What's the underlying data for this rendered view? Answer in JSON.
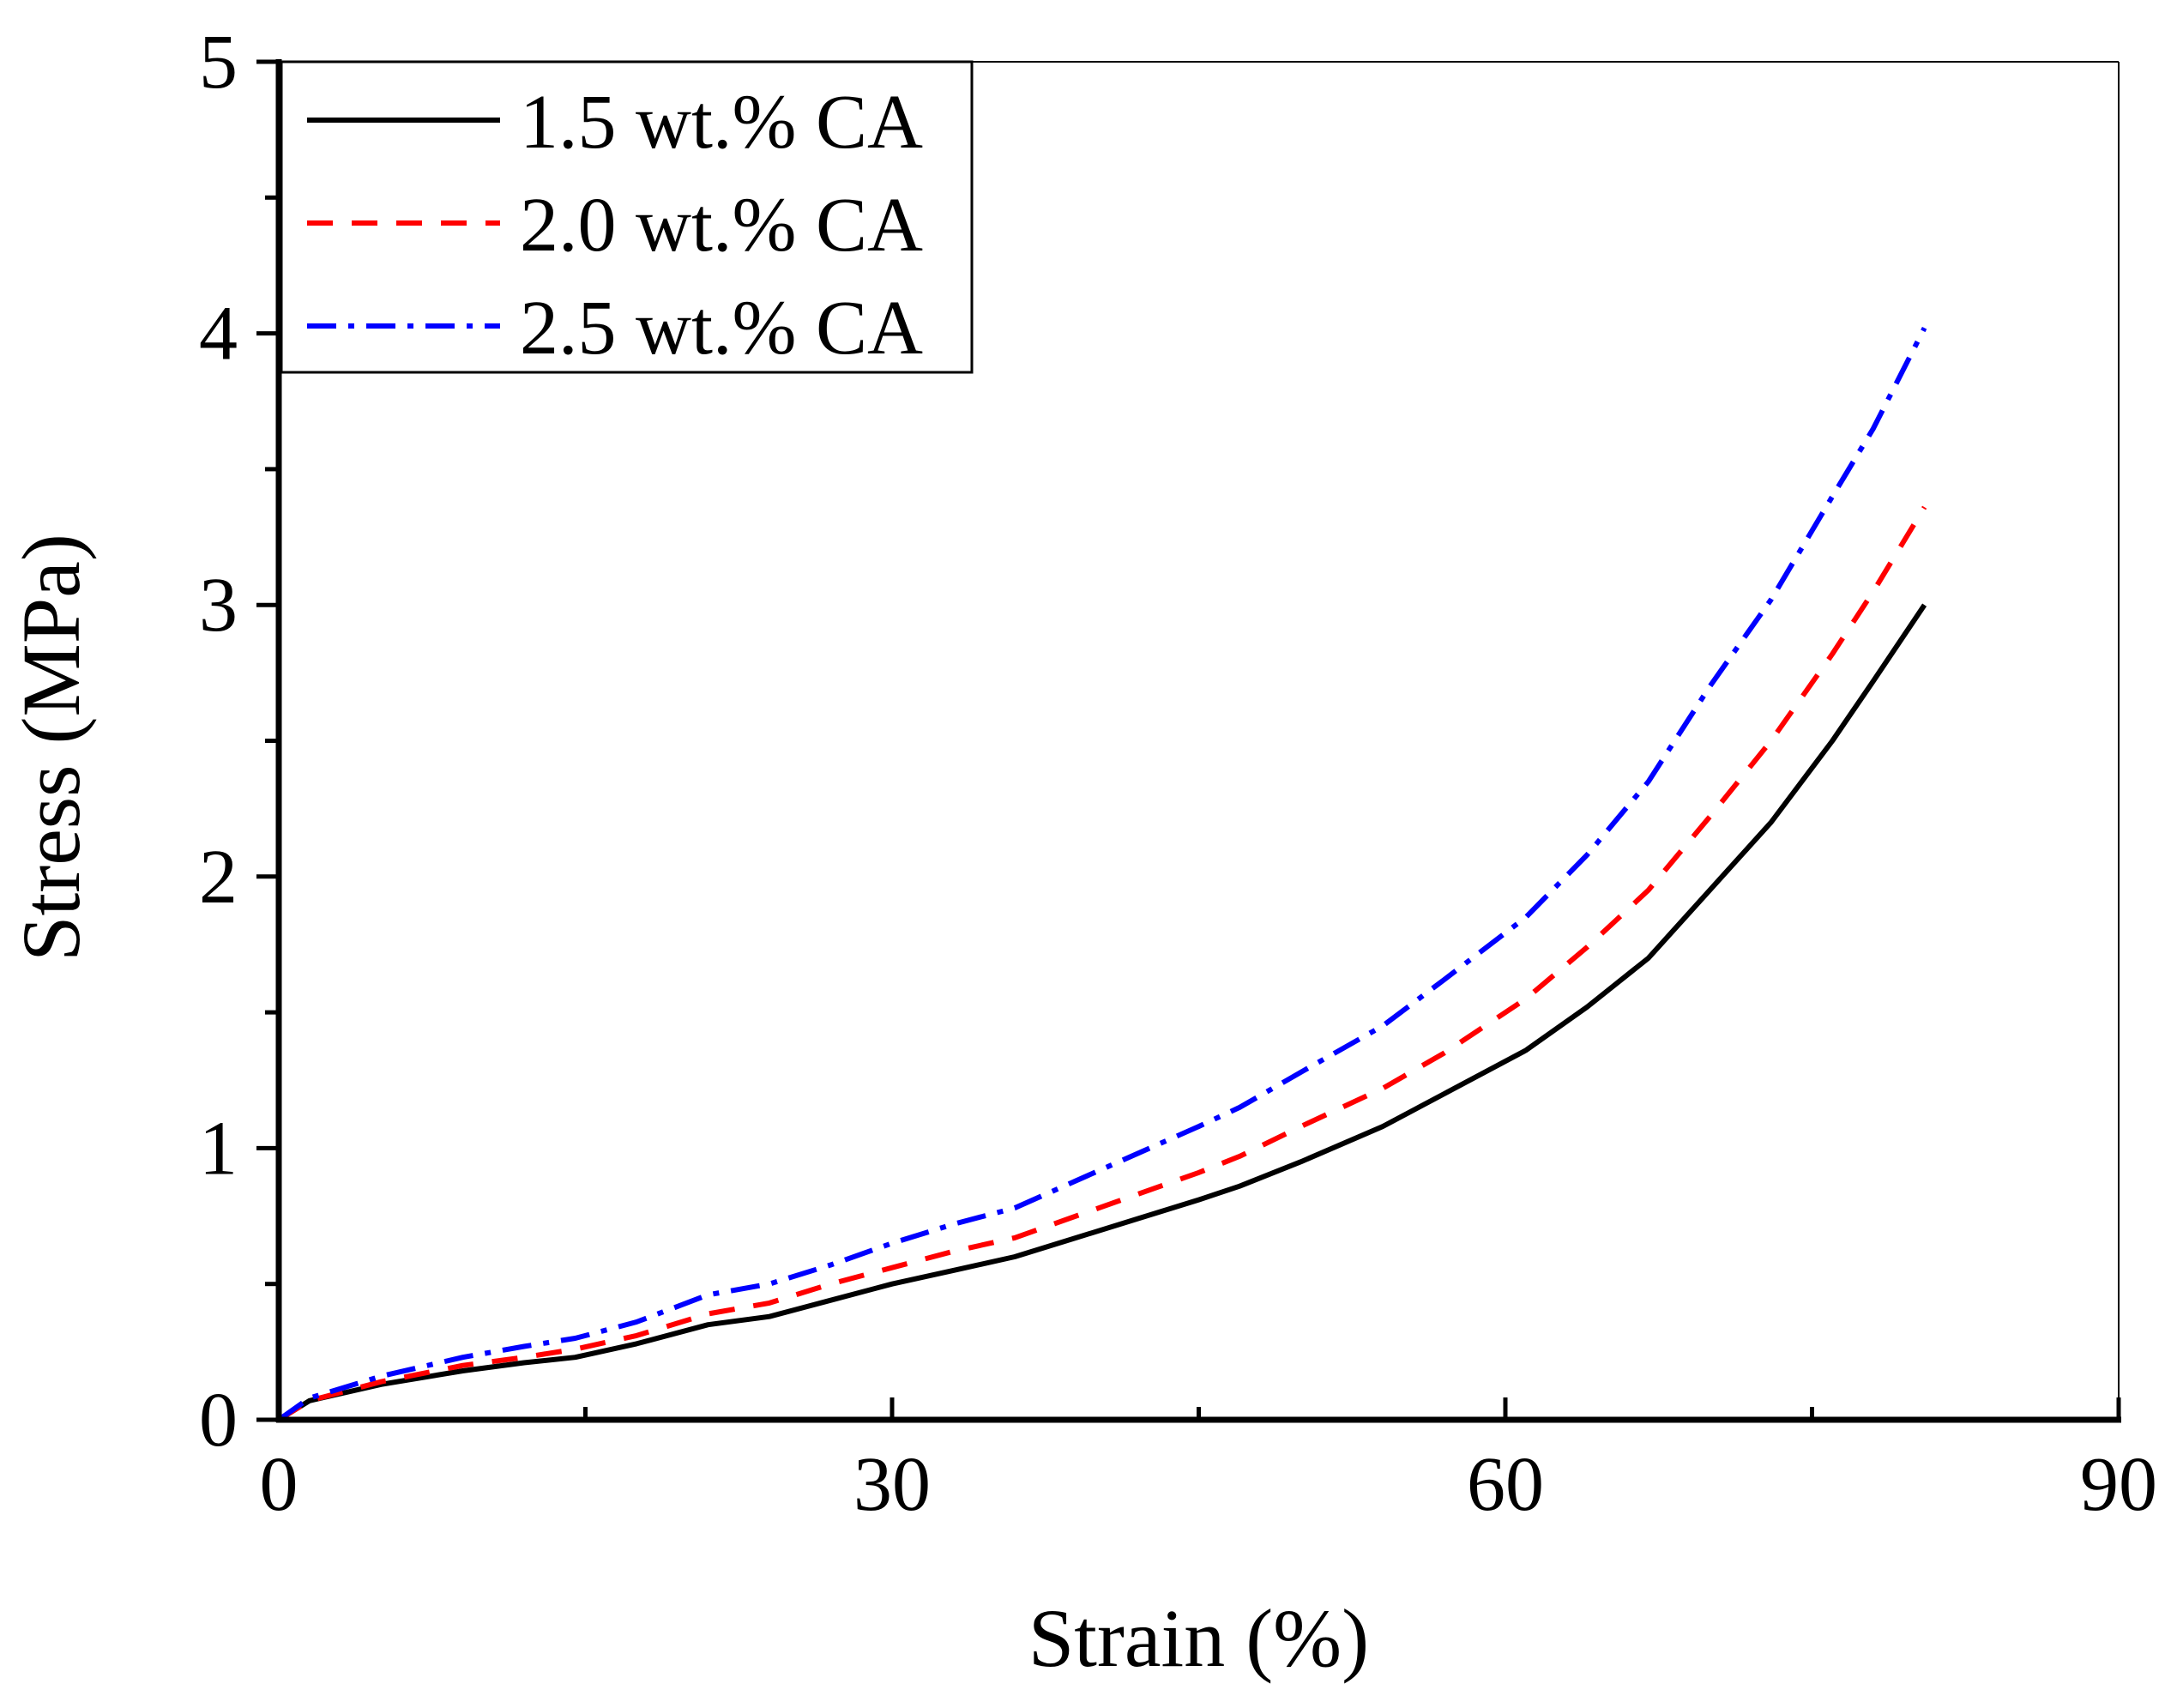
{
  "chart_data": {
    "type": "line",
    "title": "",
    "xlabel": "Strain (%)",
    "ylabel": "Stress (MPa)",
    "xlim": [
      0,
      90
    ],
    "ylim": [
      0,
      5
    ],
    "xticks": [
      0,
      30,
      60,
      90
    ],
    "yticks": [
      0,
      1,
      2,
      3,
      4,
      5
    ],
    "x_minor_step": 15,
    "y_minor_step": 0.5,
    "grid": false,
    "legend_position": "top-left",
    "series": [
      {
        "name": "1.5 wt.% CA",
        "color": "#000000",
        "style": "solid",
        "x": [
          0,
          1.5,
          5,
          9,
          12,
          14.5,
          17.5,
          21,
          24,
          27,
          30,
          33,
          36,
          39,
          42,
          45,
          47,
          50,
          54,
          57,
          61,
          64,
          67,
          70,
          73,
          76,
          78,
          80.5
        ],
        "y": [
          0,
          0.07,
          0.13,
          0.18,
          0.21,
          0.23,
          0.28,
          0.35,
          0.38,
          0.44,
          0.5,
          0.55,
          0.6,
          0.67,
          0.74,
          0.81,
          0.86,
          0.95,
          1.08,
          1.2,
          1.36,
          1.52,
          1.7,
          1.95,
          2.2,
          2.5,
          2.72,
          3.0
        ]
      },
      {
        "name": "2.0 wt.% CA",
        "color": "#ff0000",
        "style": "dashed",
        "x": [
          0,
          1.5,
          5,
          9,
          12,
          14.5,
          17.5,
          21,
          24,
          27,
          30,
          33,
          36,
          39,
          42,
          45,
          47,
          50,
          54,
          57,
          61,
          64,
          67,
          70,
          73,
          76,
          78,
          80.5
        ],
        "y": [
          0,
          0.07,
          0.14,
          0.2,
          0.23,
          0.26,
          0.31,
          0.39,
          0.43,
          0.5,
          0.56,
          0.62,
          0.67,
          0.75,
          0.83,
          0.91,
          0.97,
          1.08,
          1.22,
          1.35,
          1.55,
          1.74,
          1.95,
          2.22,
          2.5,
          2.82,
          3.05,
          3.36
        ]
      },
      {
        "name": "2.5 wt.% CA",
        "color": "#0000ff",
        "style": "dashdot",
        "x": [
          0,
          1.5,
          5,
          9,
          12,
          14.5,
          17.5,
          21,
          24,
          27,
          30,
          33,
          36,
          39,
          42,
          45,
          47,
          50,
          54,
          57,
          61,
          64,
          67,
          70,
          73,
          76,
          78,
          80.5
        ],
        "y": [
          0,
          0.08,
          0.16,
          0.23,
          0.27,
          0.3,
          0.36,
          0.46,
          0.5,
          0.57,
          0.65,
          0.72,
          0.78,
          0.88,
          0.98,
          1.08,
          1.15,
          1.28,
          1.45,
          1.62,
          1.85,
          2.08,
          2.35,
          2.7,
          3.02,
          3.4,
          3.65,
          4.02
        ]
      }
    ]
  }
}
